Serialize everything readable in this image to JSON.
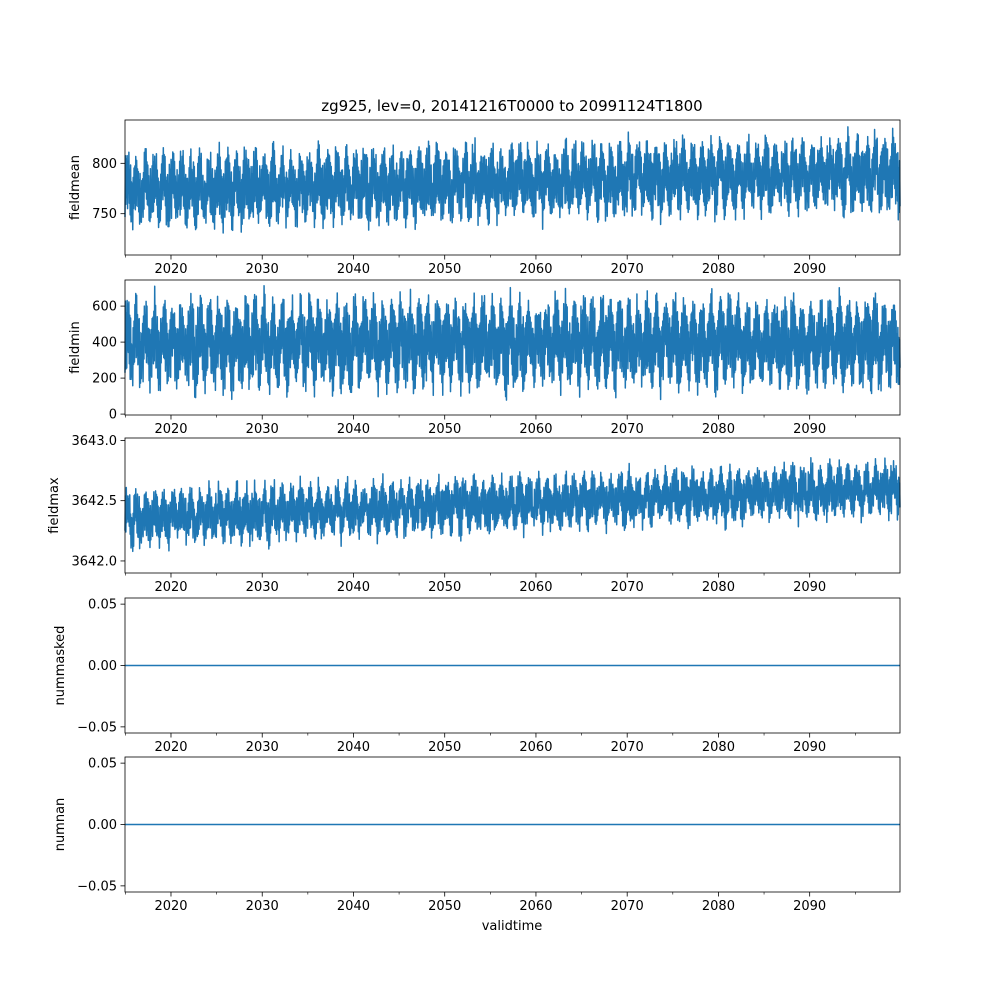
{
  "title": "zg925, lev=0, 20141216T0000 to 20991124T1800",
  "xlabel": "validtime",
  "line_color": "#1f77b4",
  "chart_data": [
    {
      "type": "line",
      "ylabel": "fieldmean",
      "xlim": [
        2014.96,
        2099.9
      ],
      "ylim": [
        709.0,
        843.0
      ],
      "x_ticks": [
        2020,
        2030,
        2040,
        2050,
        2060,
        2070,
        2080,
        2090
      ],
      "y_ticks": [
        750,
        800
      ],
      "y_tick_labels": [
        "750",
        "800"
      ],
      "series": [
        {
          "center_start": 773,
          "center_end": 790,
          "amplitude": 36,
          "noise": 8,
          "x_start": 2014.96,
          "x_end": 2099.9
        }
      ]
    },
    {
      "type": "line",
      "ylabel": "fieldmin",
      "xlim": [
        2014.96,
        2099.9
      ],
      "ylim": [
        -5.0,
        745.0
      ],
      "x_ticks": [
        2020,
        2030,
        2040,
        2050,
        2060,
        2070,
        2080,
        2090
      ],
      "y_ticks": [
        0,
        200,
        400,
        600
      ],
      "y_tick_labels": [
        "0",
        "200",
        "400",
        "600"
      ],
      "series": [
        {
          "center_start": 390,
          "center_end": 400,
          "amplitude": 250,
          "noise": 40,
          "x_start": 2014.96,
          "x_end": 2099.9
        }
      ]
    },
    {
      "type": "line",
      "ylabel": "fieldmax",
      "xlim": [
        2014.96,
        2099.9
      ],
      "ylim": [
        3641.9,
        3643.02
      ],
      "x_ticks": [
        2020,
        2030,
        2040,
        2050,
        2060,
        2070,
        2080,
        2090
      ],
      "y_ticks": [
        3642.0,
        3642.5,
        3643.0
      ],
      "y_tick_labels": [
        "3642.0",
        "3642.5",
        "3643.0"
      ],
      "series": [
        {
          "center_start": 3642.35,
          "center_end": 3642.6,
          "amplitude": 0.22,
          "noise": 0.06,
          "x_start": 2014.96,
          "x_end": 2099.9
        }
      ]
    },
    {
      "type": "line",
      "ylabel": "nummasked",
      "xlim": [
        2014.96,
        2099.9
      ],
      "ylim": [
        -0.055,
        0.055
      ],
      "x_ticks": [
        2020,
        2030,
        2040,
        2050,
        2060,
        2070,
        2080,
        2090
      ],
      "y_ticks": [
        -0.05,
        0.0,
        0.05
      ],
      "y_tick_labels": [
        "−0.05",
        "0.00",
        "0.05"
      ],
      "series": [
        {
          "x": [
            2014.96,
            2099.9
          ],
          "y": [
            0,
            0
          ]
        }
      ]
    },
    {
      "type": "line",
      "ylabel": "numnan",
      "xlim": [
        2014.96,
        2099.9
      ],
      "ylim": [
        -0.055,
        0.055
      ],
      "x_ticks": [
        2020,
        2030,
        2040,
        2050,
        2060,
        2070,
        2080,
        2090
      ],
      "y_ticks": [
        -0.05,
        0.0,
        0.05
      ],
      "y_tick_labels": [
        "−0.05",
        "0.00",
        "0.05"
      ],
      "series": [
        {
          "x": [
            2014.96,
            2099.9
          ],
          "y": [
            0,
            0
          ]
        }
      ]
    }
  ]
}
